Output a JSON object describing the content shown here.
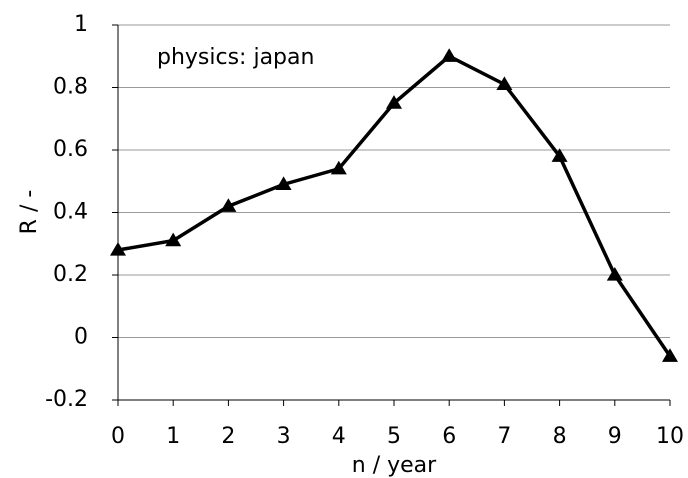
{
  "chart_data": {
    "type": "line",
    "annotation": "physics: japan",
    "xlabel": "n / year",
    "ylabel": "R / -",
    "x": [
      0,
      1,
      2,
      3,
      4,
      5,
      6,
      7,
      8,
      9,
      10
    ],
    "series": [
      {
        "name": "physics: japan",
        "color": "#000000",
        "values": [
          0.28,
          0.31,
          0.42,
          0.49,
          0.54,
          0.75,
          0.9,
          0.81,
          0.58,
          0.2,
          -0.06
        ]
      }
    ],
    "xlim": [
      0,
      10
    ],
    "xticks": [
      0,
      1,
      2,
      3,
      4,
      5,
      6,
      7,
      8,
      9,
      10
    ],
    "ylim": [
      -0.2,
      1
    ],
    "yticks": [
      -0.2,
      0,
      0.2,
      0.4,
      0.6,
      0.8,
      1
    ],
    "grid": true,
    "marker": "triangle"
  }
}
